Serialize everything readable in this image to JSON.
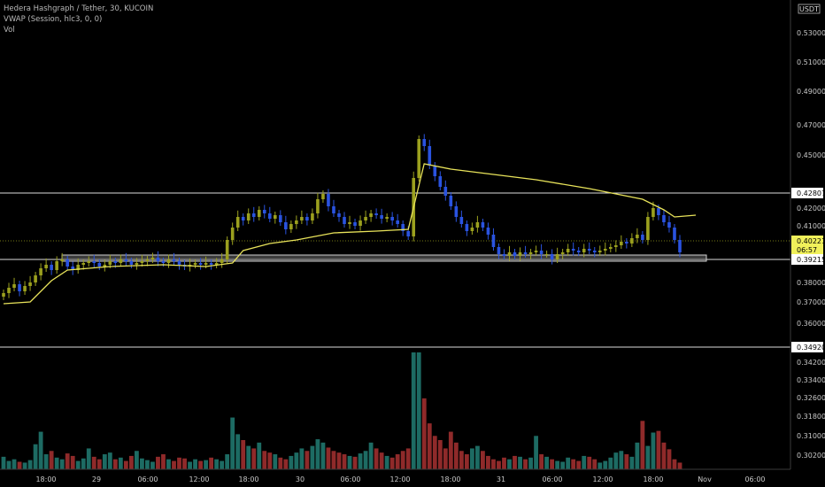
{
  "header": {
    "symbol_line": "Hedera Hashgraph / Tether, 30, KUCOIN",
    "vwap_line": "VWAP (Session, hlc3, 0, 0)",
    "vol_line": "Vol"
  },
  "currency_badge": "USDT",
  "colors": {
    "background": "#000000",
    "up_candle": "#9ba01e",
    "down_candle": "#2a53e0",
    "vwap": "#e8e35a",
    "vol_up": "#1d6b63",
    "vol_down": "#8f2a2a",
    "level_line": "#dcdcdc",
    "current_price": "#f0f05a"
  },
  "chart_data": {
    "type": "candlestick",
    "title": "Hedera Hashgraph / Tether, 30, KUCOIN",
    "y_ticks": [
      "0.53000",
      "0.51000",
      "0.49000",
      "0.47000",
      "0.45000",
      "0.42000",
      "0.41000",
      "0.38000",
      "0.37000",
      "0.36000",
      "0.34200",
      "0.33400",
      "0.32600",
      "0.31800",
      "0.31000",
      "0.30200"
    ],
    "x_ticks": [
      "18:00",
      "29",
      "06:00",
      "12:00",
      "18:00",
      "30",
      "06:00",
      "12:00",
      "18:00",
      "31",
      "06:00",
      "12:00",
      "18:00",
      "Nov",
      "06:00"
    ],
    "levels": [
      {
        "label": "0.42807",
        "price": 0.42807
      },
      {
        "label": "0.39215",
        "price": 0.39215
      },
      {
        "label": "0.34920",
        "price": 0.3492
      }
    ],
    "support_zone": {
      "from": 0.3923,
      "to": 0.3948
    },
    "current_price": {
      "label": "0.40221",
      "countdown": "06:57",
      "price": 0.40221
    },
    "price_path": [
      0.375,
      0.378,
      0.38,
      0.376,
      0.379,
      0.381,
      0.385,
      0.389,
      0.391,
      0.388,
      0.393,
      0.394,
      0.39,
      0.388,
      0.391,
      0.392,
      0.393,
      0.392,
      0.39,
      0.391,
      0.393,
      0.392,
      0.394,
      0.393,
      0.391,
      0.392,
      0.393,
      0.394,
      0.395,
      0.393,
      0.392,
      0.394,
      0.393,
      0.391,
      0.39,
      0.391,
      0.392,
      0.391,
      0.392,
      0.391,
      0.392,
      0.394,
      0.405,
      0.412,
      0.418,
      0.416,
      0.42,
      0.418,
      0.422,
      0.42,
      0.417,
      0.419,
      0.415,
      0.411,
      0.414,
      0.416,
      0.418,
      0.416,
      0.42,
      0.428,
      0.431,
      0.424,
      0.42,
      0.418,
      0.414,
      0.415,
      0.413,
      0.416,
      0.418,
      0.42,
      0.419,
      0.417,
      0.418,
      0.416,
      0.414,
      0.41,
      0.407,
      0.44,
      0.462,
      0.458,
      0.447,
      0.441,
      0.435,
      0.43,
      0.424,
      0.418,
      0.414,
      0.41,
      0.412,
      0.415,
      0.412,
      0.408,
      0.401,
      0.397,
      0.396,
      0.398,
      0.396,
      0.398,
      0.397,
      0.398,
      0.399,
      0.397,
      0.397,
      0.394,
      0.397,
      0.398,
      0.4,
      0.399,
      0.398,
      0.4,
      0.399,
      0.398,
      0.399,
      0.4,
      0.401,
      0.402,
      0.404,
      0.403,
      0.406,
      0.408,
      0.405,
      0.418,
      0.423,
      0.419,
      0.415,
      0.412,
      0.405,
      0.398
    ],
    "vwap": [
      {
        "i": 0,
        "p": 0.369
      },
      {
        "i": 5,
        "p": 0.37
      },
      {
        "i": 9,
        "p": 0.382
      },
      {
        "i": 12,
        "p": 0.388
      },
      {
        "i": 20,
        "p": 0.39
      },
      {
        "i": 30,
        "p": 0.391
      },
      {
        "i": 38,
        "p": 0.39
      },
      {
        "i": 43,
        "p": 0.392
      },
      {
        "i": 45,
        "p": 0.399
      },
      {
        "i": 50,
        "p": 0.403
      },
      {
        "i": 55,
        "p": 0.405
      },
      {
        "i": 62,
        "p": 0.409
      },
      {
        "i": 70,
        "p": 0.41
      },
      {
        "i": 76,
        "p": 0.411
      },
      {
        "i": 79,
        "p": 0.448
      },
      {
        "i": 84,
        "p": 0.445
      },
      {
        "i": 100,
        "p": 0.439
      },
      {
        "i": 110,
        "p": 0.434
      },
      {
        "i": 120,
        "p": 0.428
      },
      {
        "i": 124,
        "p": 0.422
      },
      {
        "i": 126,
        "p": 0.418
      },
      {
        "i": 130,
        "p": 0.419
      }
    ],
    "volume": [
      15,
      10,
      12,
      9,
      8,
      11,
      30,
      45,
      18,
      22,
      14,
      12,
      19,
      16,
      10,
      13,
      25,
      15,
      12,
      18,
      20,
      12,
      14,
      10,
      16,
      22,
      13,
      11,
      9,
      15,
      18,
      12,
      10,
      14,
      13,
      9,
      12,
      10,
      11,
      14,
      12,
      10,
      18,
      62,
      42,
      35,
      28,
      25,
      32,
      22,
      20,
      18,
      14,
      12,
      16,
      20,
      25,
      22,
      28,
      36,
      32,
      26,
      22,
      20,
      18,
      16,
      15,
      19,
      22,
      32,
      25,
      20,
      16,
      14,
      18,
      22,
      25,
      140,
      140,
      85,
      55,
      40,
      35,
      25,
      45,
      32,
      22,
      18,
      25,
      28,
      22,
      16,
      12,
      10,
      14,
      12,
      16,
      15,
      12,
      14,
      40,
      18,
      15,
      12,
      10,
      9,
      14,
      12,
      10,
      16,
      15,
      12,
      8,
      10,
      14,
      20,
      22,
      18,
      15,
      32,
      58,
      28,
      44,
      46,
      32,
      24,
      12,
      8
    ]
  }
}
